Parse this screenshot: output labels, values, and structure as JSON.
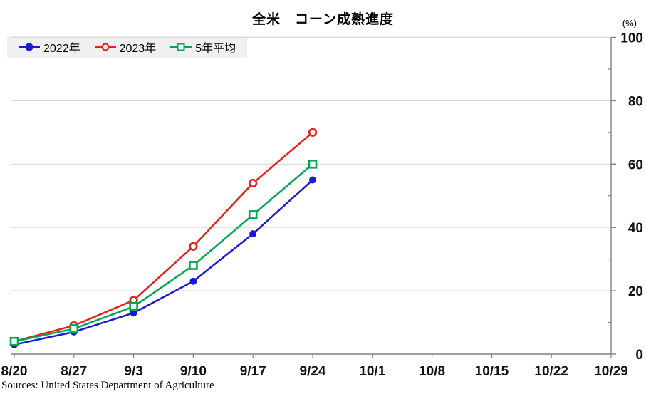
{
  "source": "Sources: United States Department of Agriculture",
  "chart_data": {
    "type": "line",
    "title": "全米　コーン成熟進度",
    "ylabel": "(%)",
    "categories": [
      "8/20",
      "8/27",
      "9/3",
      "9/10",
      "9/17",
      "9/24",
      "10/1",
      "10/8",
      "10/15",
      "10/22",
      "10/29"
    ],
    "series": [
      {
        "name": "2022年",
        "color": "#1a1ad2",
        "marker": "circle-filled",
        "values": [
          3,
          7,
          13,
          23,
          38,
          55
        ]
      },
      {
        "name": "2023年",
        "color": "#e62119",
        "marker": "circle-open",
        "values": [
          4,
          9,
          17,
          34,
          54,
          70
        ]
      },
      {
        "name": "5年平均",
        "color": "#00a651",
        "marker": "square-open",
        "values": [
          4,
          8,
          15,
          28,
          44,
          60
        ]
      }
    ],
    "ylim": [
      0,
      100
    ],
    "y_major_ticks": [
      0,
      20,
      40,
      60,
      80,
      100
    ],
    "y_minor_ticks": [
      10,
      30,
      50,
      70,
      90
    ],
    "grid": true,
    "legend_position": "top-left",
    "axis_color": "#808080",
    "grid_color": "#d9d9d9",
    "label_color": "#111111"
  }
}
